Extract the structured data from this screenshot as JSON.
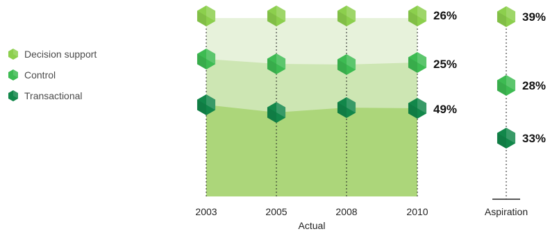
{
  "chart_data": {
    "type": "area",
    "legend_position": "left",
    "series": [
      {
        "name": "Decision support",
        "color": "#8ccf4d"
      },
      {
        "name": "Control",
        "color": "#3dbb52"
      },
      {
        "name": "Transactional",
        "color": "#12874a"
      }
    ],
    "actual": {
      "xlabel": "Actual",
      "x": [
        "2003",
        "2005",
        "2008",
        "2010"
      ],
      "band_colors": [
        "#e7f2db",
        "#cde6b3",
        "#acd67a"
      ],
      "end_labels": [
        "26%",
        "25%",
        "49%"
      ]
    },
    "aspiration": {
      "label": "Aspiration",
      "values": [
        "39%",
        "28%",
        "33%"
      ]
    }
  }
}
